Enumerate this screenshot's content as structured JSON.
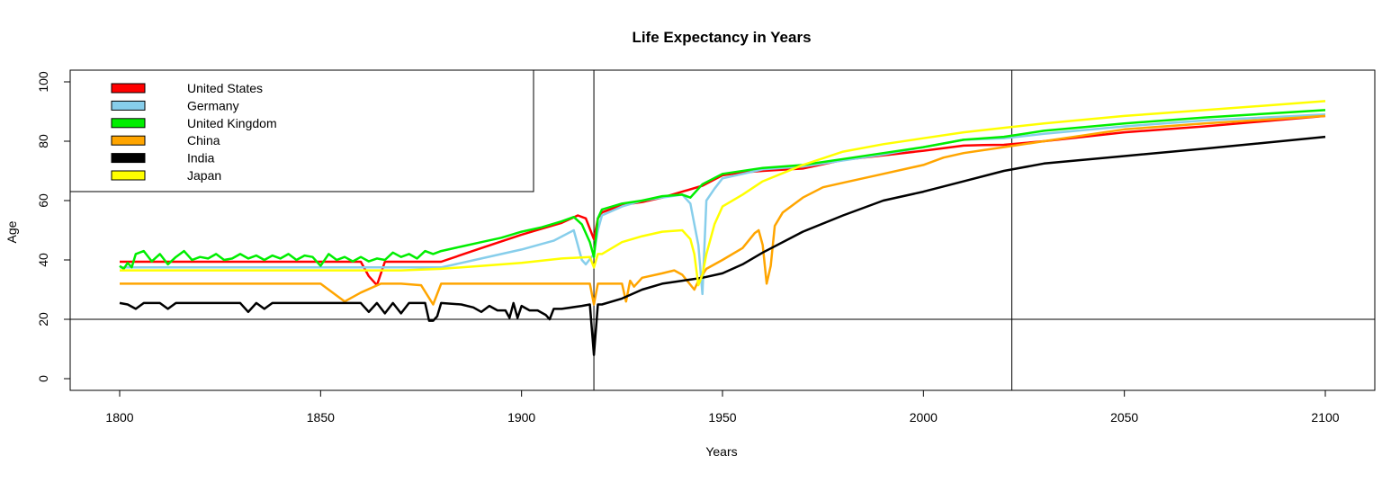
{
  "chart_data": {
    "type": "line",
    "title": "Life Expectancy in Years",
    "xlabel": "Years",
    "ylabel": "Age",
    "xlim": [
      1788,
      2112
    ],
    "ylim": [
      -4,
      104
    ],
    "x_ticks": [
      1800,
      1850,
      1900,
      1950,
      2000,
      2050,
      2100
    ],
    "y_ticks": [
      0,
      20,
      40,
      60,
      80,
      100
    ],
    "legend_position": "top-left",
    "reference_lines": {
      "vertical": [
        1918,
        2022
      ],
      "horizontal": [
        20
      ]
    },
    "series": [
      {
        "name": "United States",
        "color": "#ff0000",
        "x": [
          1800,
          1860,
          1862,
          1864,
          1866,
          1880,
          1890,
          1900,
          1905,
          1910,
          1914,
          1916,
          1918,
          1919,
          1920,
          1925,
          1930,
          1935,
          1940,
          1945,
          1950,
          1955,
          1960,
          1970,
          1980,
          1990,
          2000,
          2010,
          2015,
          2020,
          2030,
          2050,
          2070,
          2100
        ],
        "y": [
          39.4,
          39.4,
          34.5,
          31.5,
          39.4,
          39.4,
          44,
          48.5,
          50.5,
          52.5,
          55,
          54,
          47,
          54,
          56,
          58.5,
          59.5,
          61,
          63,
          65,
          68.5,
          69.5,
          70,
          70.8,
          73.7,
          75.2,
          76.8,
          78.5,
          78.7,
          78.8,
          80,
          83,
          85,
          88.5
        ]
      },
      {
        "name": "Germany",
        "color": "#87ceeb",
        "x": [
          1800,
          1880,
          1890,
          1900,
          1908,
          1913,
          1915,
          1916,
          1918,
          1919,
          1920,
          1925,
          1930,
          1935,
          1940,
          1942,
          1944,
          1945,
          1946,
          1948,
          1950,
          1960,
          1970,
          1980,
          1990,
          2000,
          2010,
          2020,
          2030,
          2050,
          2070,
          2100
        ],
        "y": [
          37.5,
          37.5,
          40.5,
          43.5,
          46.5,
          50,
          40,
          38.5,
          42,
          50,
          55,
          58,
          60,
          61,
          62,
          59,
          45,
          28.5,
          60,
          64,
          67.5,
          70.5,
          71.5,
          73.5,
          75.5,
          78,
          80.5,
          81,
          82.5,
          85,
          87,
          89
        ]
      },
      {
        "name": "United Kingdom",
        "color": "#00ee00",
        "x": [
          1800,
          1801,
          1802,
          1803,
          1804,
          1806,
          1808,
          1810,
          1812,
          1814,
          1816,
          1818,
          1820,
          1822,
          1824,
          1826,
          1828,
          1830,
          1832,
          1834,
          1836,
          1838,
          1840,
          1842,
          1844,
          1846,
          1848,
          1850,
          1852,
          1854,
          1856,
          1858,
          1860,
          1862,
          1864,
          1866,
          1868,
          1870,
          1872,
          1874,
          1876,
          1878,
          1880,
          1885,
          1890,
          1895,
          1900,
          1905,
          1910,
          1913,
          1915,
          1917,
          1918,
          1919,
          1920,
          1925,
          1930,
          1935,
          1940,
          1942,
          1945,
          1950,
          1960,
          1970,
          1980,
          1990,
          2000,
          2010,
          2020,
          2030,
          2050,
          2070,
          2100
        ],
        "y": [
          38,
          37,
          39,
          37.5,
          42,
          43,
          39.5,
          42,
          38.5,
          41,
          43,
          40,
          41,
          40.5,
          42,
          40,
          40.5,
          42,
          40.5,
          41.5,
          40,
          41.5,
          40.5,
          42,
          40,
          41.5,
          41,
          38,
          42,
          40,
          41,
          39.5,
          41,
          39.5,
          40.5,
          40,
          42.5,
          41,
          42,
          40.5,
          43,
          42,
          43,
          44.5,
          46,
          47.5,
          49.5,
          51,
          53,
          54.5,
          52,
          46,
          41,
          54,
          57,
          59,
          60,
          61.5,
          62,
          61,
          65.5,
          69,
          71,
          72,
          74,
          76,
          78,
          80.5,
          81.5,
          83.5,
          86,
          88,
          90.5
        ]
      },
      {
        "name": "China",
        "color": "#ffa500",
        "x": [
          1800,
          1850,
          1856,
          1860,
          1865,
          1870,
          1875,
          1878,
          1880,
          1900,
          1917,
          1918,
          1919,
          1925,
          1926,
          1927,
          1928,
          1930,
          1935,
          1938,
          1940,
          1943,
          1944,
          1946,
          1950,
          1955,
          1958,
          1959,
          1960,
          1961,
          1962,
          1963,
          1965,
          1970,
          1975,
          1980,
          1990,
          2000,
          2005,
          2010,
          2015,
          2020,
          2030,
          2050,
          2070,
          2100
        ],
        "y": [
          32,
          32,
          26,
          29,
          32,
          32,
          31.5,
          25,
          32,
          32,
          32,
          25,
          32,
          32,
          26,
          33,
          31,
          34,
          35.5,
          36.5,
          35,
          30,
          33,
          37,
          40,
          44,
          49,
          50,
          45,
          32,
          38,
          51.5,
          56,
          61,
          64.5,
          66,
          69,
          72,
          74.5,
          76,
          77,
          78,
          80,
          84,
          86,
          88.5
        ]
      },
      {
        "name": "India",
        "color": "#000000",
        "x": [
          1800,
          1802,
          1804,
          1806,
          1808,
          1810,
          1812,
          1814,
          1816,
          1818,
          1820,
          1825,
          1830,
          1832,
          1834,
          1836,
          1838,
          1840,
          1845,
          1850,
          1855,
          1860,
          1862,
          1864,
          1866,
          1868,
          1870,
          1872,
          1874,
          1876,
          1877,
          1878,
          1879,
          1880,
          1885,
          1888,
          1890,
          1892,
          1894,
          1896,
          1897,
          1898,
          1899,
          1900,
          1902,
          1904,
          1906,
          1907,
          1908,
          1910,
          1915,
          1917,
          1918,
          1919,
          1920,
          1925,
          1930,
          1935,
          1940,
          1945,
          1950,
          1955,
          1960,
          1970,
          1980,
          1990,
          2000,
          2010,
          2020,
          2030,
          2050,
          2070,
          2100
        ],
        "y": [
          25.5,
          25,
          23.5,
          25.5,
          25.5,
          25.5,
          23.5,
          25.5,
          25.5,
          25.5,
          25.5,
          25.5,
          25.5,
          22.5,
          25.5,
          23.5,
          25.5,
          25.5,
          25.5,
          25.5,
          25.5,
          25.5,
          22.5,
          25.5,
          22,
          25.5,
          22,
          25.5,
          25.5,
          25.5,
          19.5,
          19.5,
          21,
          25.5,
          25,
          24,
          22.5,
          24.5,
          23,
          23,
          20.5,
          25.5,
          20.5,
          24.5,
          23,
          23,
          21.5,
          20,
          23.5,
          23.5,
          24.5,
          25,
          8,
          25,
          25,
          27,
          30,
          32,
          33,
          34,
          35.5,
          38.5,
          42.5,
          49.5,
          55,
          60,
          63,
          66.5,
          70,
          72.5,
          75,
          77.5,
          81.5
        ]
      },
      {
        "name": "Japan",
        "color": "#ffff00",
        "x": [
          1800,
          1870,
          1880,
          1890,
          1900,
          1910,
          1917,
          1918,
          1919,
          1920,
          1925,
          1930,
          1935,
          1940,
          1942,
          1943,
          1944,
          1945,
          1946,
          1948,
          1950,
          1955,
          1960,
          1970,
          1980,
          1990,
          2000,
          2010,
          2020,
          2030,
          2050,
          2070,
          2100
        ],
        "y": [
          36.5,
          36.5,
          37,
          38,
          39,
          40.5,
          41,
          37.5,
          42,
          42,
          46,
          48,
          49.5,
          50,
          47,
          42,
          31.5,
          35,
          42,
          52,
          58,
          62,
          66.5,
          72,
          76.5,
          79,
          81,
          83,
          84.5,
          86,
          88.5,
          90.5,
          93.5
        ]
      }
    ]
  }
}
